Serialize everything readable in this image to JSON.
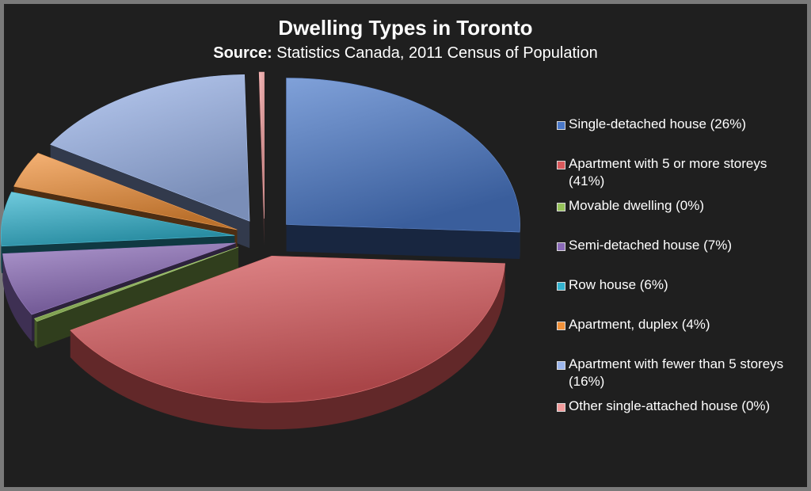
{
  "title": "Dwelling Types in Toronto",
  "subtitle": {
    "label": "Source:",
    "text": "Statistics Canada, 2011 Census of Population"
  },
  "chart_data": {
    "type": "pie",
    "style": "3d exploded pie",
    "legend_position": "right",
    "slices": [
      {
        "label": "Single-detached house (26%)",
        "value": 26,
        "color": "#4a78c8"
      },
      {
        "label": "Apartment with 5 or more storeys (41%)",
        "value": 41,
        "color": "#d9595c"
      },
      {
        "label": "Movable dwelling (0%)",
        "value": 0,
        "color": "#96c25a"
      },
      {
        "label": "Semi-detached house (7%)",
        "value": 7,
        "color": "#8a6ab8"
      },
      {
        "label": "Row house (6%)",
        "value": 6,
        "color": "#33b3cf"
      },
      {
        "label": "Apartment, duplex (4%)",
        "value": 4,
        "color": "#f0913a"
      },
      {
        "label": "Apartment with fewer than 5 storeys (16%)",
        "value": 16,
        "color": "#9cb6ec"
      },
      {
        "label": "Other single-attached house (0%)",
        "value": 0,
        "color": "#f29c9c"
      }
    ]
  }
}
